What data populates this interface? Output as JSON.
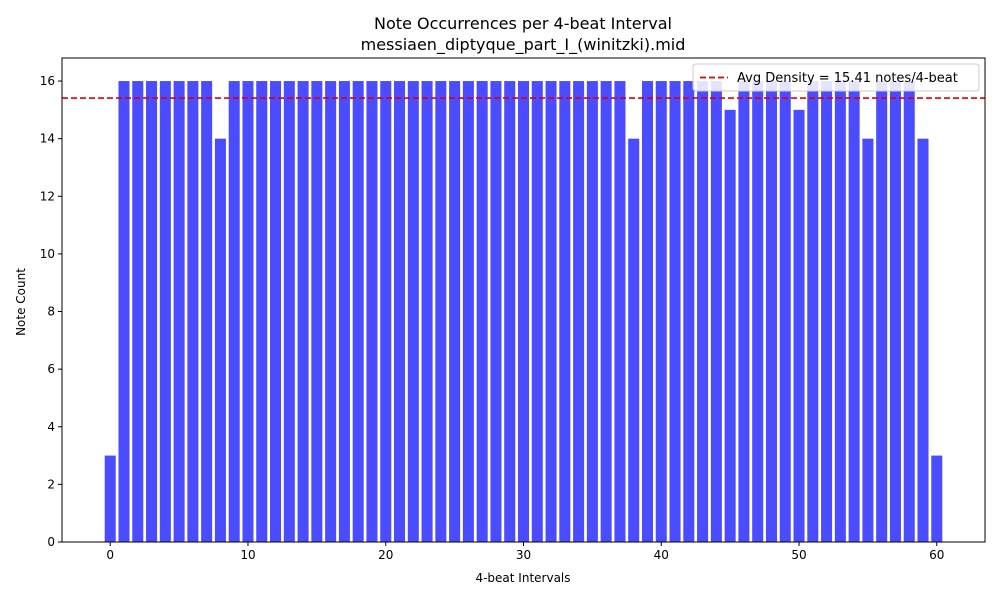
{
  "chart_data": {
    "type": "bar",
    "title": "Note Occurrences per 4-beat Interval",
    "subtitle": "messiaen_diptyque_part_I_(winitzki).mid",
    "xlabel": "4-beat Intervals",
    "ylabel": "Note Count",
    "x": [
      0,
      1,
      2,
      3,
      4,
      5,
      6,
      7,
      8,
      9,
      10,
      11,
      12,
      13,
      14,
      15,
      16,
      17,
      18,
      19,
      20,
      21,
      22,
      23,
      24,
      25,
      26,
      27,
      28,
      29,
      30,
      31,
      32,
      33,
      34,
      35,
      36,
      37,
      38,
      39,
      40,
      41,
      42,
      43,
      44,
      45,
      46,
      47,
      48,
      49,
      50,
      51,
      52,
      53,
      54,
      55,
      56,
      57,
      58,
      59,
      60
    ],
    "values": [
      3,
      16,
      16,
      16,
      16,
      16,
      16,
      16,
      14,
      16,
      16,
      16,
      16,
      16,
      16,
      16,
      16,
      16,
      16,
      16,
      16,
      16,
      16,
      16,
      16,
      16,
      16,
      16,
      16,
      16,
      16,
      16,
      16,
      16,
      16,
      16,
      16,
      16,
      14,
      16,
      16,
      16,
      16,
      16,
      16,
      15,
      16,
      16,
      16,
      16,
      15,
      16,
      16,
      16,
      16,
      14,
      16,
      16,
      16,
      14,
      3
    ],
    "xlim": [
      -3.5,
      63.5
    ],
    "ylim": [
      0,
      16.8
    ],
    "xticks": [
      0,
      10,
      20,
      30,
      40,
      50,
      60
    ],
    "yticks": [
      0,
      2,
      4,
      6,
      8,
      10,
      12,
      14,
      16
    ],
    "bar_color": "#4b4bff",
    "reference_line": {
      "value": 15.41,
      "color": "#e00000",
      "style": "dashed",
      "label": "Avg Density = 15.41 notes/4-beat"
    },
    "legend_position": "top-right",
    "grid": false
  }
}
